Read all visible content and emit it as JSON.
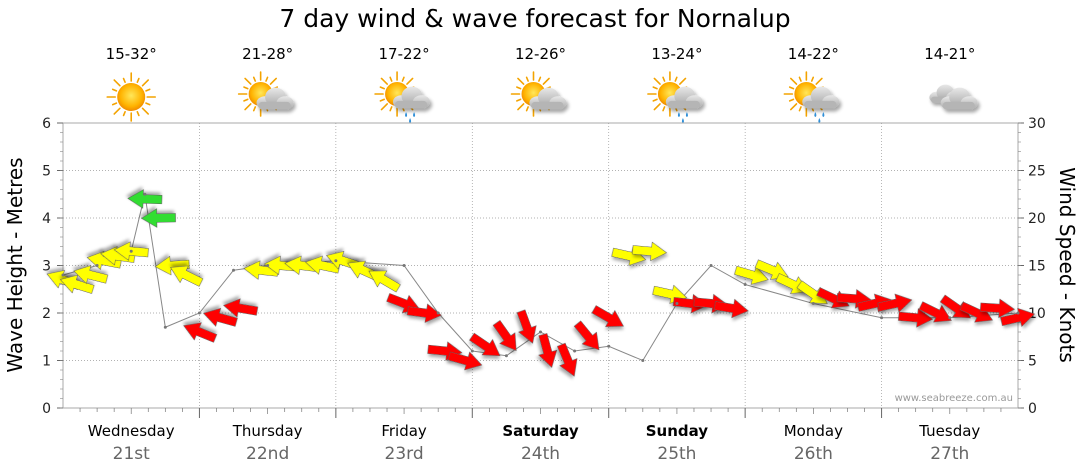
{
  "chart_data": {
    "type": "line",
    "title": "7 day wind & wave forecast for Nornalup",
    "ylabel": "Wave Height - Metres",
    "y2label": "Wind Speed - Knots",
    "ylim": [
      0,
      6
    ],
    "y2lim": [
      0,
      30
    ],
    "yticks": [
      0,
      1,
      2,
      3,
      4,
      5,
      6
    ],
    "y2ticks": [
      0,
      5,
      10,
      15,
      20,
      25,
      30
    ],
    "watermark": "www.seabreeze.com.au",
    "days": [
      {
        "name": "Wednesday",
        "date": "21st",
        "temp": "15-32°",
        "weather": "sunny",
        "bold": false
      },
      {
        "name": "Thursday",
        "date": "22nd",
        "temp": "21-28°",
        "weather": "partly-cloudy",
        "bold": false
      },
      {
        "name": "Friday",
        "date": "23rd",
        "temp": "17-22°",
        "weather": "showers",
        "bold": false
      },
      {
        "name": "Saturday",
        "date": "24th",
        "temp": "12-26°",
        "weather": "partly-cloudy",
        "bold": true
      },
      {
        "name": "Sunday",
        "date": "25th",
        "temp": "13-24°",
        "weather": "showers",
        "bold": true
      },
      {
        "name": "Monday",
        "date": "26th",
        "temp": "14-22°",
        "weather": "showers",
        "bold": false
      },
      {
        "name": "Tuesday",
        "date": "27th",
        "temp": "14-21°",
        "weather": "cloudy",
        "bold": false
      }
    ],
    "wave_height_m": {
      "x_day": [
        0.0,
        0.25,
        0.5,
        0.6,
        0.75,
        1.0,
        1.25,
        1.5,
        2.0,
        2.5,
        2.75,
        3.0,
        3.25,
        3.5,
        3.75,
        4.0,
        4.25,
        4.5,
        4.75,
        5.0,
        5.5,
        6.0,
        6.5,
        7.0
      ],
      "values": [
        2.8,
        3.0,
        3.3,
        4.5,
        1.7,
        2.0,
        2.9,
        3.0,
        3.1,
        3.0,
        2.0,
        1.2,
        1.1,
        1.6,
        1.2,
        1.3,
        1.0,
        2.2,
        3.0,
        2.6,
        2.2,
        1.9,
        1.9,
        2.0
      ]
    },
    "wind_speed_kn": {
      "x_day": [
        0.0,
        0.1,
        0.2,
        0.3,
        0.4,
        0.5,
        0.6,
        0.7,
        0.8,
        0.9,
        1.0,
        1.15,
        1.3,
        1.45,
        1.6,
        1.75,
        1.9,
        2.05,
        2.2,
        2.35,
        2.5,
        2.65,
        2.8,
        2.95,
        3.1,
        3.25,
        3.4,
        3.55,
        3.7,
        3.85,
        4.0,
        4.15,
        4.3,
        4.45,
        4.6,
        4.75,
        4.9,
        5.05,
        5.2,
        5.35,
        5.5,
        5.65,
        5.8,
        5.95,
        6.1,
        6.25,
        6.4,
        6.55,
        6.7,
        6.85,
        7.0
      ],
      "values": [
        13.5,
        13.0,
        14.0,
        15.5,
        16.0,
        16.5,
        22.0,
        20.0,
        15.0,
        14.0,
        8.0,
        9.5,
        10.5,
        14.5,
        15.0,
        15.0,
        15.0,
        15.5,
        14.5,
        13.5,
        11.0,
        10.0,
        6.0,
        5.0,
        6.5,
        7.5,
        8.5,
        6.0,
        5.0,
        7.5,
        9.5,
        16.0,
        16.5,
        12.0,
        11.0,
        11.0,
        10.5,
        14.0,
        14.5,
        13.0,
        12.0,
        11.5,
        11.5,
        11.0,
        11.0,
        9.5,
        10.0,
        10.5,
        10.0,
        10.5,
        9.5
      ]
    },
    "wind_colors": {
      "light": "#ffff00",
      "moderate": "#ff0000",
      "strong": "#33dd33"
    }
  }
}
